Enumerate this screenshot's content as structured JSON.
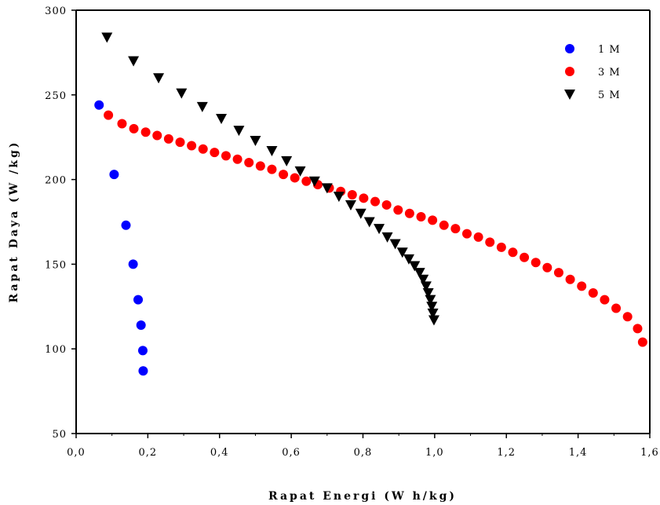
{
  "chart_data": {
    "type": "scatter",
    "title": "",
    "xlabel": "Rapat Energi (W h/kg)",
    "ylabel": "Rapat Daya (W /kg)",
    "xlim": [
      0.0,
      1.6
    ],
    "ylim": [
      50,
      300
    ],
    "x_ticks": [
      "0,0",
      "0,2",
      "0,4",
      "0,6",
      "0,8",
      "1,0",
      "1,2",
      "1,4",
      "1,6"
    ],
    "y_ticks": [
      "50",
      "100",
      "150",
      "200",
      "250",
      "300"
    ],
    "legend_position": "top-right",
    "grid": false,
    "series": [
      {
        "name": "1 M",
        "marker": "circle",
        "color": "#0000ff",
        "points": [
          [
            0.064,
            244
          ],
          [
            0.106,
            203
          ],
          [
            0.139,
            173
          ],
          [
            0.159,
            150
          ],
          [
            0.173,
            129
          ],
          [
            0.181,
            114
          ],
          [
            0.186,
            99
          ],
          [
            0.187,
            87
          ]
        ]
      },
      {
        "name": "3 M",
        "marker": "circle",
        "color": "#ff0000",
        "points": [
          [
            0.09,
            238
          ],
          [
            0.128,
            233
          ],
          [
            0.161,
            230
          ],
          [
            0.194,
            228
          ],
          [
            0.226,
            226
          ],
          [
            0.258,
            224
          ],
          [
            0.29,
            222
          ],
          [
            0.322,
            220
          ],
          [
            0.354,
            218
          ],
          [
            0.386,
            216
          ],
          [
            0.418,
            214
          ],
          [
            0.45,
            212
          ],
          [
            0.482,
            210
          ],
          [
            0.514,
            208
          ],
          [
            0.546,
            206
          ],
          [
            0.578,
            203
          ],
          [
            0.61,
            201
          ],
          [
            0.642,
            199
          ],
          [
            0.674,
            197
          ],
          [
            0.706,
            195
          ],
          [
            0.738,
            193
          ],
          [
            0.77,
            191
          ],
          [
            0.802,
            189
          ],
          [
            0.834,
            187
          ],
          [
            0.866,
            185
          ],
          [
            0.898,
            182
          ],
          [
            0.93,
            180
          ],
          [
            0.962,
            178
          ],
          [
            0.994,
            176
          ],
          [
            1.026,
            173
          ],
          [
            1.058,
            171
          ],
          [
            1.09,
            168
          ],
          [
            1.122,
            166
          ],
          [
            1.154,
            163
          ],
          [
            1.186,
            160
          ],
          [
            1.218,
            157
          ],
          [
            1.25,
            154
          ],
          [
            1.282,
            151
          ],
          [
            1.314,
            148
          ],
          [
            1.346,
            145
          ],
          [
            1.378,
            141
          ],
          [
            1.41,
            137
          ],
          [
            1.442,
            133
          ],
          [
            1.474,
            129
          ],
          [
            1.506,
            124
          ],
          [
            1.538,
            119
          ],
          [
            1.566,
            112
          ],
          [
            1.58,
            104
          ]
        ]
      },
      {
        "name": "5 M",
        "marker": "triangle-down",
        "color": "#000000",
        "points": [
          [
            0.086,
            284
          ],
          [
            0.16,
            270
          ],
          [
            0.23,
            260
          ],
          [
            0.294,
            251
          ],
          [
            0.352,
            243
          ],
          [
            0.405,
            236
          ],
          [
            0.454,
            229
          ],
          [
            0.5,
            223
          ],
          [
            0.546,
            217
          ],
          [
            0.587,
            211
          ],
          [
            0.625,
            205
          ],
          [
            0.665,
            199
          ],
          [
            0.7,
            195
          ],
          [
            0.733,
            190
          ],
          [
            0.766,
            185
          ],
          [
            0.794,
            180
          ],
          [
            0.818,
            175
          ],
          [
            0.845,
            171
          ],
          [
            0.868,
            166
          ],
          [
            0.89,
            162
          ],
          [
            0.91,
            157
          ],
          [
            0.928,
            153
          ],
          [
            0.944,
            149
          ],
          [
            0.958,
            145
          ],
          [
            0.968,
            141
          ],
          [
            0.976,
            137
          ],
          [
            0.982,
            133
          ],
          [
            0.988,
            129
          ],
          [
            0.992,
            125
          ],
          [
            0.995,
            121
          ],
          [
            0.998,
            117
          ]
        ]
      }
    ]
  }
}
